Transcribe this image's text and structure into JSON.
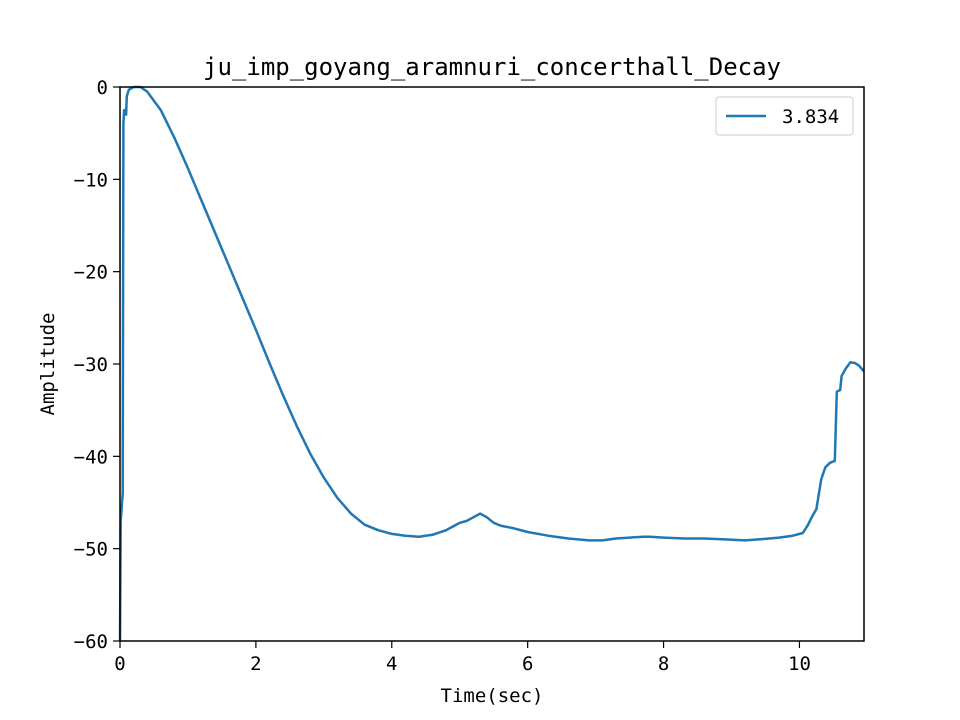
{
  "chart_data": {
    "type": "line",
    "title": "ju_imp_goyang_aramnuri_concerthall_Decay",
    "xlabel": "Time(sec)",
    "ylabel": "Amplitude",
    "xlim": [
      0,
      10.95
    ],
    "ylim": [
      -60,
      0
    ],
    "xticks": [
      0,
      2,
      4,
      6,
      8,
      10
    ],
    "yticks": [
      0,
      -10,
      -20,
      -30,
      -40,
      -50,
      -60
    ],
    "grid": false,
    "legend_position": "top-right",
    "color": "#1f77b4",
    "series": [
      {
        "name": "3.834",
        "points": [
          [
            0.0,
            -60.0
          ],
          [
            0.01,
            -47.0
          ],
          [
            0.04,
            -44.0
          ],
          [
            0.05,
            -4.0
          ],
          [
            0.06,
            -2.5
          ],
          [
            0.08,
            -2.5
          ],
          [
            0.09,
            -3.0
          ],
          [
            0.1,
            -1.0
          ],
          [
            0.13,
            -0.3
          ],
          [
            0.2,
            0.0
          ],
          [
            0.3,
            0.0
          ],
          [
            0.4,
            -0.5
          ],
          [
            0.6,
            -2.5
          ],
          [
            0.8,
            -5.5
          ],
          [
            1.0,
            -8.8
          ],
          [
            1.2,
            -12.3
          ],
          [
            1.4,
            -15.8
          ],
          [
            1.6,
            -19.3
          ],
          [
            1.8,
            -22.8
          ],
          [
            2.0,
            -26.3
          ],
          [
            2.2,
            -29.9
          ],
          [
            2.4,
            -33.4
          ],
          [
            2.6,
            -36.7
          ],
          [
            2.8,
            -39.7
          ],
          [
            3.0,
            -42.3
          ],
          [
            3.2,
            -44.5
          ],
          [
            3.4,
            -46.2
          ],
          [
            3.6,
            -47.4
          ],
          [
            3.8,
            -48.0
          ],
          [
            4.0,
            -48.4
          ],
          [
            4.2,
            -48.6
          ],
          [
            4.4,
            -48.7
          ],
          [
            4.6,
            -48.5
          ],
          [
            4.8,
            -48.0
          ],
          [
            4.9,
            -47.6
          ],
          [
            5.0,
            -47.2
          ],
          [
            5.1,
            -47.0
          ],
          [
            5.2,
            -46.6
          ],
          [
            5.3,
            -46.2
          ],
          [
            5.4,
            -46.6
          ],
          [
            5.5,
            -47.2
          ],
          [
            5.6,
            -47.5
          ],
          [
            5.8,
            -47.8
          ],
          [
            6.0,
            -48.2
          ],
          [
            6.3,
            -48.6
          ],
          [
            6.6,
            -48.9
          ],
          [
            6.9,
            -49.1
          ],
          [
            7.1,
            -49.1
          ],
          [
            7.3,
            -48.9
          ],
          [
            7.5,
            -48.8
          ],
          [
            7.7,
            -48.7
          ],
          [
            7.8,
            -48.7
          ],
          [
            8.0,
            -48.8
          ],
          [
            8.3,
            -48.9
          ],
          [
            8.6,
            -48.9
          ],
          [
            8.9,
            -49.0
          ],
          [
            9.2,
            -49.1
          ],
          [
            9.4,
            -49.0
          ],
          [
            9.7,
            -48.8
          ],
          [
            9.9,
            -48.6
          ],
          [
            10.05,
            -48.3
          ],
          [
            10.12,
            -47.5
          ],
          [
            10.18,
            -46.6
          ],
          [
            10.25,
            -45.7
          ],
          [
            10.32,
            -42.5
          ],
          [
            10.38,
            -41.2
          ],
          [
            10.45,
            -40.7
          ],
          [
            10.52,
            -40.5
          ],
          [
            10.55,
            -33.0
          ],
          [
            10.6,
            -32.8
          ],
          [
            10.62,
            -31.3
          ],
          [
            10.68,
            -30.5
          ],
          [
            10.75,
            -29.8
          ],
          [
            10.82,
            -29.9
          ],
          [
            10.88,
            -30.2
          ],
          [
            10.95,
            -30.8
          ]
        ]
      }
    ]
  }
}
